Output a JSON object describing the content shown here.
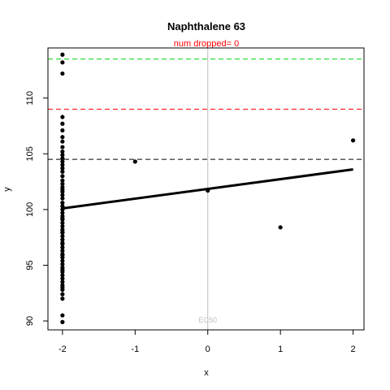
{
  "chart_data": {
    "type": "scatter",
    "title": "Naphthalene 63",
    "subtitle": "num dropped= 0",
    "xlabel": "x",
    "ylabel": "y",
    "xlim": [
      -2.2,
      2.15
    ],
    "ylim": [
      89.2,
      114.5
    ],
    "x_ticks": [
      -2,
      -1,
      0,
      1,
      2
    ],
    "y_ticks": [
      90,
      95,
      100,
      105,
      110
    ],
    "x_tick_labels": [
      "-2",
      "-1",
      "0",
      "1",
      "2"
    ],
    "y_tick_labels": [
      "90",
      "95",
      "100",
      "105",
      "110"
    ],
    "grid": false,
    "legend": "none",
    "points": {
      "x": [
        -2,
        -2,
        -2,
        -2,
        -2,
        -2,
        -2,
        -2,
        -2,
        -2,
        -2,
        -2,
        -2,
        -2,
        -2,
        -2,
        -2,
        -2,
        -2,
        -2,
        -2,
        -2,
        -2,
        -2,
        -2,
        -2,
        -2,
        -2,
        -2,
        -2,
        -2,
        -2,
        -2,
        -2,
        -2,
        -2,
        -2,
        -2,
        -2,
        -2,
        -2,
        -2,
        -2,
        -2,
        -2,
        -2,
        -2,
        -2,
        -2,
        -2,
        -2,
        -2,
        -2,
        -2,
        -2,
        -2,
        -2,
        -2,
        -2,
        -2,
        -1,
        0,
        1,
        2
      ],
      "y": [
        113.9,
        113.2,
        112.2,
        108.3,
        107.7,
        107.1,
        106.5,
        106.1,
        105.6,
        105.2,
        104.9,
        104.6,
        104.3,
        104.0,
        103.7,
        103.4,
        103.0,
        102.6,
        102.3,
        102.0,
        101.6,
        101.3,
        101.0,
        100.6,
        100.3,
        100.0,
        99.7,
        99.4,
        99.1,
        98.8,
        98.5,
        98.2,
        97.9,
        97.6,
        97.3,
        97.0,
        96.6,
        96.3,
        96.0,
        95.7,
        95.4,
        95.1,
        94.8,
        94.4,
        94.1,
        93.8,
        93.5,
        93.2,
        92.8,
        92.4,
        90.5,
        89.9,
        101.8,
        99.2,
        98.0,
        96.9,
        95.9,
        94.6,
        93.0,
        92.0,
        104.3,
        101.7,
        98.4,
        106.2
      ]
    },
    "fit_line": {
      "x": [
        -2,
        2
      ],
      "y": [
        100.1,
        103.6
      ]
    },
    "hlines": [
      {
        "y": 113.5,
        "color": "#00cd00",
        "style": "dashed"
      },
      {
        "y": 109.0,
        "color": "#ff0000",
        "style": "dashed"
      },
      {
        "y": 104.5,
        "color": "#000000",
        "style": "dashed"
      }
    ],
    "vline": {
      "x": 0,
      "color": "#bebebe",
      "label": "EC50"
    }
  }
}
